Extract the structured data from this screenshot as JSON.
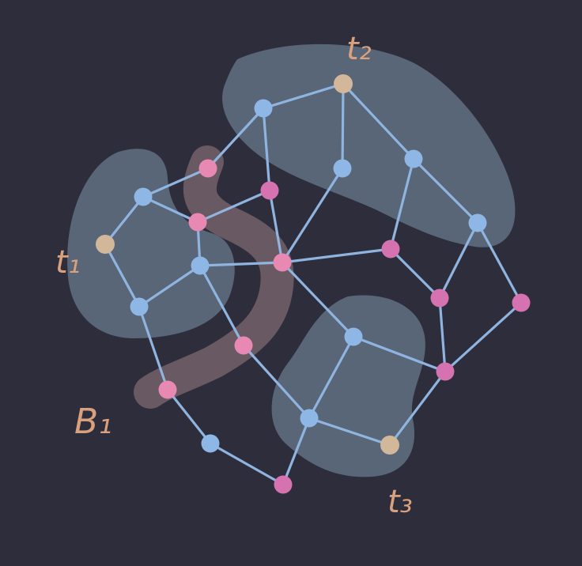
{
  "colors": {
    "background": "#2e2d3b",
    "region_fill": "#5c6b7d",
    "boundary_fill": "#6c5c64",
    "edge": "#8fb4df",
    "node_blue": "#8fb7e6",
    "node_pink": "#e889b4",
    "node_magenta": "#d672b0",
    "node_terminal": "#d2b79b",
    "label": "#d9a17e"
  },
  "labels": {
    "t1": "t₁",
    "t2": "t₂",
    "t3": "t₃",
    "B1": "B₁"
  },
  "nodes": [
    {
      "id": "a",
      "kind": "terminal"
    },
    {
      "id": "b",
      "kind": "blue"
    },
    {
      "id": "c",
      "kind": "blue"
    },
    {
      "id": "d",
      "kind": "blue"
    },
    {
      "id": "e",
      "kind": "pink"
    },
    {
      "id": "f",
      "kind": "pink"
    },
    {
      "id": "g",
      "kind": "magenta"
    },
    {
      "id": "h",
      "kind": "blue"
    },
    {
      "id": "i",
      "kind": "terminal"
    },
    {
      "id": "j",
      "kind": "blue"
    },
    {
      "id": "k",
      "kind": "blue"
    },
    {
      "id": "l",
      "kind": "blue"
    },
    {
      "id": "m",
      "kind": "pink"
    },
    {
      "id": "n",
      "kind": "magenta"
    },
    {
      "id": "o",
      "kind": "magenta"
    },
    {
      "id": "p",
      "kind": "magenta"
    },
    {
      "id": "q",
      "kind": "pink"
    },
    {
      "id": "r",
      "kind": "pink"
    },
    {
      "id": "s",
      "kind": "blue"
    },
    {
      "id": "t",
      "kind": "blue"
    },
    {
      "id": "u",
      "kind": "magenta"
    },
    {
      "id": "v",
      "kind": "blue"
    },
    {
      "id": "w",
      "kind": "terminal"
    },
    {
      "id": "x",
      "kind": "blue"
    },
    {
      "id": "y",
      "kind": "magenta"
    }
  ],
  "edges": [
    [
      "a",
      "b"
    ],
    [
      "a",
      "c"
    ],
    [
      "b",
      "e"
    ],
    [
      "b",
      "f"
    ],
    [
      "f",
      "g"
    ],
    [
      "f",
      "d"
    ],
    [
      "c",
      "d"
    ],
    [
      "c",
      "r"
    ],
    [
      "d",
      "m"
    ],
    [
      "d",
      "q"
    ],
    [
      "e",
      "h"
    ],
    [
      "h",
      "i"
    ],
    [
      "h",
      "g"
    ],
    [
      "g",
      "m"
    ],
    [
      "i",
      "j"
    ],
    [
      "i",
      "k"
    ],
    [
      "j",
      "m"
    ],
    [
      "k",
      "l"
    ],
    [
      "k",
      "n"
    ],
    [
      "l",
      "u"
    ],
    [
      "l",
      "o"
    ],
    [
      "m",
      "n"
    ],
    [
      "m",
      "s"
    ],
    [
      "n",
      "u"
    ],
    [
      "u",
      "p"
    ],
    [
      "o",
      "p"
    ],
    [
      "s",
      "p"
    ],
    [
      "s",
      "t"
    ],
    [
      "t",
      "w"
    ],
    [
      "w",
      "p"
    ],
    [
      "t",
      "y"
    ],
    [
      "q",
      "t"
    ],
    [
      "r",
      "x"
    ],
    [
      "x",
      "y"
    ]
  ]
}
